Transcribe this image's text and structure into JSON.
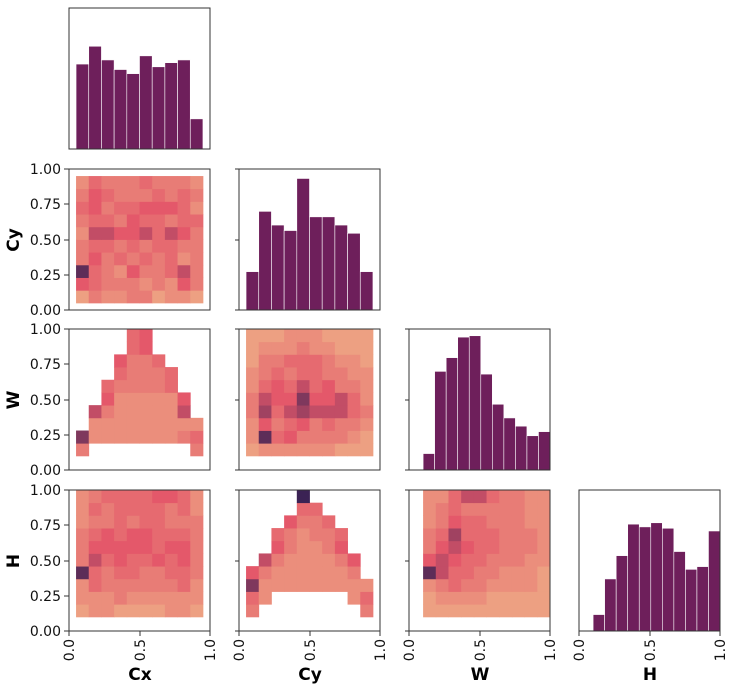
{
  "chart_data": {
    "type": "pairplot",
    "variables": [
      "Cx",
      "Cy",
      "W",
      "H"
    ],
    "axis_range": [
      0.0,
      1.0
    ],
    "ticks_left": [
      "0.00",
      "0.25",
      "0.50",
      "0.75",
      "1.00"
    ],
    "ticks_bottom": [
      "0.0",
      "0.5",
      "1.0"
    ],
    "colormap": "magma-like (light = low, dark = high)",
    "colors": {
      "bar": "#6e1f5b",
      "heat_low": "#efb288",
      "heat_mid": "#e4586a",
      "heat_high": "#3b2254",
      "frame": "#333333"
    },
    "histograms": [
      {
        "variable": "Cx",
        "bin_edges": [
          0.05,
          0.95
        ],
        "bins": 10,
        "counts": [
          0.62,
          0.75,
          0.65,
          0.58,
          0.55,
          0.68,
          0.6,
          0.63,
          0.65,
          0.22
        ]
      },
      {
        "variable": "Cy",
        "bin_edges": [
          0.05,
          0.95
        ],
        "bins": 10,
        "counts": [
          0.28,
          0.72,
          0.62,
          0.58,
          0.96,
          0.68,
          0.68,
          0.62,
          0.56,
          0.28
        ]
      },
      {
        "variable": "W",
        "bin_edges": [
          0.1,
          1.0
        ],
        "bins": 11,
        "counts": [
          0.12,
          0.72,
          0.82,
          0.97,
          0.98,
          0.7,
          0.48,
          0.38,
          0.32,
          0.25,
          0.28
        ]
      },
      {
        "variable": "H",
        "bin_edges": [
          0.1,
          1.0
        ],
        "bins": 11,
        "counts": [
          0.12,
          0.38,
          0.55,
          0.78,
          0.76,
          0.79,
          0.75,
          0.58,
          0.45,
          0.47,
          0.73
        ]
      }
    ],
    "heatmaps": [
      {
        "x": "Cx",
        "y": "Cy",
        "extent": [
          [
            0.05,
            0.95
          ],
          [
            0.05,
            0.95
          ]
        ],
        "grid": [
          [
            0.1,
            0.3,
            0.2,
            0.2,
            0.3,
            0.3,
            0.1,
            0.2,
            0.2,
            0.1
          ],
          [
            0.5,
            0.4,
            0.3,
            0.3,
            0.3,
            0.2,
            0.3,
            0.2,
            0.5,
            0.3
          ],
          [
            0.9,
            0.4,
            0.3,
            0.2,
            0.5,
            0.3,
            0.3,
            0.4,
            0.6,
            0.3
          ],
          [
            0.3,
            0.5,
            0.3,
            0.4,
            0.3,
            0.4,
            0.3,
            0.4,
            0.2,
            0.3
          ],
          [
            0.3,
            0.4,
            0.4,
            0.3,
            0.4,
            0.3,
            0.4,
            0.4,
            0.3,
            0.3
          ],
          [
            0.2,
            0.6,
            0.6,
            0.5,
            0.5,
            0.6,
            0.4,
            0.6,
            0.5,
            0.3
          ],
          [
            0.3,
            0.4,
            0.4,
            0.3,
            0.5,
            0.4,
            0.4,
            0.3,
            0.4,
            0.4
          ],
          [
            0.4,
            0.5,
            0.3,
            0.4,
            0.4,
            0.5,
            0.5,
            0.5,
            0.4,
            0.2
          ],
          [
            0.3,
            0.5,
            0.4,
            0.3,
            0.3,
            0.3,
            0.4,
            0.3,
            0.4,
            0.3
          ],
          [
            0.2,
            0.4,
            0.3,
            0.3,
            0.3,
            0.4,
            0.3,
            0.3,
            0.3,
            0.2
          ]
        ]
      },
      {
        "x": "Cx",
        "y": "W",
        "extent": [
          [
            0.05,
            0.95
          ],
          [
            0.1,
            1.0
          ]
        ],
        "grid": [
          [
            0.3,
            0,
            0,
            0,
            0,
            0,
            0,
            0,
            0,
            0.3
          ],
          [
            0.8,
            0.2,
            0.2,
            0.2,
            0.2,
            0.2,
            0.2,
            0.2,
            0.3,
            0.4
          ],
          [
            0,
            0.2,
            0.2,
            0.2,
            0.2,
            0.2,
            0.2,
            0.2,
            0.2,
            0.2
          ],
          [
            0,
            0.6,
            0.3,
            0.2,
            0.2,
            0.2,
            0.2,
            0.2,
            0.6,
            0
          ],
          [
            0,
            0,
            0.5,
            0.2,
            0.2,
            0.2,
            0.2,
            0.2,
            0.5,
            0
          ],
          [
            0,
            0,
            0.4,
            0.3,
            0.3,
            0.3,
            0.3,
            0.4,
            0,
            0
          ],
          [
            0,
            0,
            0,
            0.4,
            0.3,
            0.3,
            0.3,
            0.4,
            0,
            0
          ],
          [
            0,
            0,
            0,
            0.5,
            0.3,
            0.3,
            0.4,
            0,
            0,
            0
          ],
          [
            0,
            0,
            0,
            0,
            0.4,
            0.5,
            0,
            0,
            0,
            0
          ],
          [
            0,
            0,
            0,
            0,
            0.4,
            0.5,
            0,
            0,
            0,
            0
          ]
        ]
      },
      {
        "x": "Cy",
        "y": "W",
        "extent": [
          [
            0.05,
            0.95
          ],
          [
            0.1,
            1.0
          ]
        ],
        "grid": [
          [
            0.1,
            0.2,
            0.2,
            0.2,
            0.2,
            0.2,
            0.2,
            0.1,
            0.1,
            0.1
          ],
          [
            0.2,
            0.9,
            0.4,
            0.5,
            0.3,
            0.3,
            0.3,
            0.3,
            0.2,
            0.1
          ],
          [
            0.2,
            0.5,
            0.3,
            0.4,
            0.5,
            0.3,
            0.4,
            0.3,
            0.3,
            0.2
          ],
          [
            0.3,
            0.7,
            0.4,
            0.6,
            0.7,
            0.6,
            0.6,
            0.6,
            0.4,
            0.3
          ],
          [
            0.3,
            0.6,
            0.5,
            0.5,
            0.8,
            0.5,
            0.5,
            0.6,
            0.4,
            0.2
          ],
          [
            0.2,
            0.4,
            0.5,
            0.4,
            0.6,
            0.4,
            0.5,
            0.3,
            0.3,
            0.2
          ],
          [
            0.2,
            0.3,
            0.4,
            0.3,
            0.4,
            0.4,
            0.3,
            0.3,
            0.2,
            0.2
          ],
          [
            0.1,
            0.3,
            0.3,
            0.4,
            0.4,
            0.4,
            0.3,
            0.2,
            0.2,
            0.1
          ],
          [
            0.1,
            0.2,
            0.2,
            0.2,
            0.3,
            0.2,
            0.2,
            0.1,
            0.1,
            0.1
          ],
          [
            0.1,
            0.1,
            0.1,
            0.2,
            0.2,
            0.2,
            0.1,
            0.1,
            0.1,
            0.1
          ]
        ]
      },
      {
        "x": "Cx",
        "y": "H",
        "extent": [
          [
            0.05,
            0.95
          ],
          [
            0.1,
            1.0
          ]
        ],
        "grid": [
          [
            0.1,
            0.2,
            0.2,
            0.1,
            0.1,
            0.1,
            0.1,
            0.2,
            0.2,
            0.1
          ],
          [
            0.2,
            0.2,
            0.2,
            0.3,
            0.2,
            0.2,
            0.2,
            0.2,
            0.2,
            0.2
          ],
          [
            0.2,
            0.4,
            0.3,
            0.3,
            0.3,
            0.3,
            0.3,
            0.3,
            0.4,
            0.2
          ],
          [
            0.9,
            0.4,
            0.3,
            0.4,
            0.4,
            0.3,
            0.3,
            0.4,
            0.4,
            0.3
          ],
          [
            0.3,
            0.6,
            0.4,
            0.5,
            0.4,
            0.4,
            0.5,
            0.4,
            0.5,
            0.3
          ],
          [
            0.3,
            0.5,
            0.5,
            0.5,
            0.5,
            0.5,
            0.4,
            0.5,
            0.5,
            0.3
          ],
          [
            0.3,
            0.4,
            0.5,
            0.4,
            0.5,
            0.5,
            0.4,
            0.4,
            0.4,
            0.3
          ],
          [
            0.2,
            0.3,
            0.3,
            0.4,
            0.3,
            0.4,
            0.4,
            0.3,
            0.3,
            0.3
          ],
          [
            0.2,
            0.4,
            0.3,
            0.4,
            0.4,
            0.4,
            0.4,
            0.3,
            0.4,
            0.2
          ],
          [
            0.2,
            0.3,
            0.4,
            0.4,
            0.4,
            0.4,
            0.5,
            0.5,
            0.4,
            0.2
          ]
        ]
      },
      {
        "x": "Cy",
        "y": "H",
        "extent": [
          [
            0.05,
            0.95
          ],
          [
            0.1,
            1.0
          ]
        ],
        "grid": [
          [
            0.3,
            0,
            0,
            0,
            0,
            0,
            0,
            0,
            0,
            0.3
          ],
          [
            0.4,
            0.2,
            0,
            0,
            0,
            0,
            0,
            0,
            0.2,
            0.4
          ],
          [
            0.8,
            0.2,
            0.2,
            0.2,
            0.2,
            0.2,
            0.2,
            0.2,
            0.2,
            0.2
          ],
          [
            0.5,
            0.3,
            0.2,
            0.2,
            0.2,
            0.2,
            0.2,
            0.2,
            0.3,
            0
          ],
          [
            0,
            0.6,
            0.3,
            0.2,
            0.2,
            0.2,
            0.2,
            0.3,
            0.5,
            0
          ],
          [
            0,
            0,
            0.5,
            0.3,
            0.2,
            0.2,
            0.3,
            0.5,
            0,
            0
          ],
          [
            0,
            0,
            0.4,
            0.3,
            0.2,
            0.3,
            0.3,
            0.4,
            0,
            0
          ],
          [
            0,
            0,
            0,
            0.5,
            0.3,
            0.3,
            0.4,
            0,
            0,
            0
          ],
          [
            0,
            0,
            0,
            0,
            0.4,
            0.4,
            0,
            0,
            0,
            0
          ],
          [
            0,
            0,
            0,
            0,
            1.0,
            0,
            0,
            0,
            0,
            0
          ]
        ]
      },
      {
        "x": "W",
        "y": "H",
        "extent": [
          [
            0.1,
            1.0
          ],
          [
            0.1,
            1.0
          ]
        ],
        "grid": [
          [
            0.1,
            0.1,
            0.1,
            0.1,
            0.1,
            0.1,
            0.1,
            0.1,
            0.1,
            0.1
          ],
          [
            0.1,
            0.2,
            0.2,
            0.2,
            0.2,
            0.1,
            0.1,
            0.1,
            0.1,
            0.1
          ],
          [
            0.2,
            0.3,
            0.4,
            0.3,
            0.3,
            0.2,
            0.2,
            0.2,
            0.2,
            0.1
          ],
          [
            0.9,
            0.6,
            0.4,
            0.4,
            0.3,
            0.3,
            0.2,
            0.2,
            0.2,
            0.1
          ],
          [
            0.5,
            0.6,
            0.5,
            0.4,
            0.4,
            0.3,
            0.3,
            0.3,
            0.2,
            0.2
          ],
          [
            0.3,
            0.5,
            0.6,
            0.5,
            0.4,
            0.4,
            0.3,
            0.3,
            0.3,
            0.2
          ],
          [
            0.3,
            0.4,
            0.7,
            0.4,
            0.4,
            0.4,
            0.3,
            0.3,
            0.3,
            0.2
          ],
          [
            0.2,
            0.3,
            0.5,
            0.4,
            0.4,
            0.3,
            0.3,
            0.3,
            0.2,
            0.2
          ],
          [
            0.2,
            0.3,
            0.4,
            0.3,
            0.3,
            0.3,
            0.3,
            0.3,
            0.2,
            0.2
          ],
          [
            0.2,
            0.2,
            0.4,
            0.6,
            0.6,
            0.4,
            0.3,
            0.3,
            0.2,
            0.2
          ]
        ]
      }
    ]
  }
}
